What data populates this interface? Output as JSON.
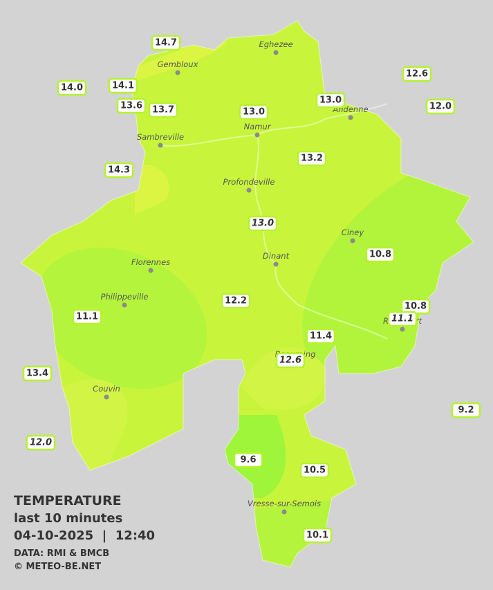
{
  "title": "TEMPERATURE",
  "subtitle": "last 10 minutes",
  "datetime": "04-10-2025  |  12:40",
  "data_source": "DATA: RMI & BMCB",
  "copyright": "© METEO-BE.NET",
  "cities": [
    "Eghezee",
    "Gembloux",
    "Andenne",
    "Namur",
    "Sambreville",
    "Profondeville",
    "Ciney",
    "Dinant",
    "Florennes",
    "Philippeville",
    "Rochefort",
    "Beauraing",
    "Couvin",
    "Vresse-sur-Semois"
  ],
  "stations": [
    {
      "label": "14.7"
    },
    {
      "label": "14.0"
    },
    {
      "label": "14.1"
    },
    {
      "label": "13.6"
    },
    {
      "label": "13.7"
    },
    {
      "label": "13.0"
    },
    {
      "label": "13.0"
    },
    {
      "label": "12.6"
    },
    {
      "label": "12.0"
    },
    {
      "label": "14.3"
    },
    {
      "label": "13.2"
    },
    {
      "label": "13.0",
      "italic": true
    },
    {
      "label": "10.8"
    },
    {
      "label": "12.2"
    },
    {
      "label": "11.1"
    },
    {
      "label": "10.8"
    },
    {
      "label": "11.1",
      "italic": true
    },
    {
      "label": "11.4"
    },
    {
      "label": "12.6",
      "italic": true
    },
    {
      "label": "13.4"
    },
    {
      "label": "9.2"
    },
    {
      "label": "12.0",
      "italic": true
    },
    {
      "label": "9.6"
    },
    {
      "label": "10.5"
    },
    {
      "label": "10.1"
    }
  ]
}
